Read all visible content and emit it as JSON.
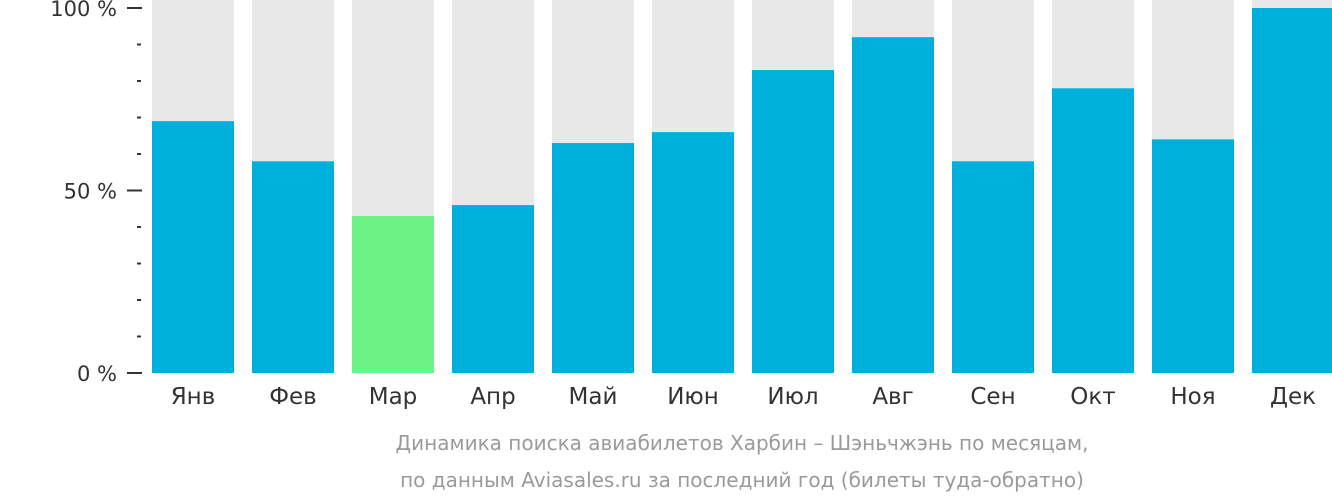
{
  "colors": {
    "bar": "#00b0dc",
    "bar_min": "#6cf386",
    "track": "#e8e8e8",
    "axis": "#333333",
    "caption": "#9a9a9a"
  },
  "chart_data": {
    "type": "bar",
    "categories": [
      "Янв",
      "Фев",
      "Мар",
      "Апр",
      "Май",
      "Июн",
      "Июл",
      "Авг",
      "Сен",
      "Окт",
      "Ноя",
      "Дек"
    ],
    "values": [
      69,
      58,
      43,
      46,
      63,
      66,
      83,
      92,
      58,
      78,
      64,
      100
    ],
    "highlight_index": 2,
    "ylim": [
      0,
      100
    ],
    "yticks": [
      {
        "value": 0,
        "label": "0 %"
      },
      {
        "value": 50,
        "label": "50 %"
      },
      {
        "value": 100,
        "label": "100 %"
      }
    ],
    "minor_tick_step": 10,
    "title": "",
    "xlabel": "",
    "ylabel": "",
    "grid": false,
    "caption": [
      "Динамика поиска авиабилетов Харбин – Шэньчжэнь по месяцам,",
      "по данным Aviasales.ru за последний год (билеты туда-обратно)"
    ]
  }
}
